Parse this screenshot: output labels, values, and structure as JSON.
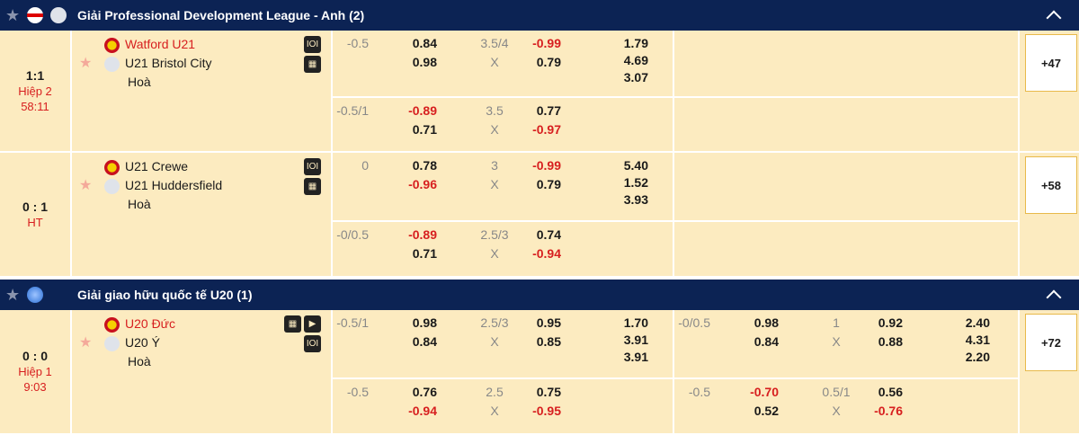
{
  "colors": {
    "header": "#0c2354",
    "row_bg": "#fcebc0",
    "negative": "#d71f1f",
    "accent": "#e8b94a"
  },
  "leagues": [
    {
      "name": "Giải Professional Development League - Anh (2)",
      "flag_icons": [
        "england-flag-icon",
        "fa-crest-icon"
      ],
      "collapse_icon": "chevron-up-icon",
      "matches": [
        {
          "score": "1:1",
          "status": "Hiệp 2",
          "clock": "58:11",
          "home": "Watford U21",
          "away": "U21 Bristol City",
          "draw": "Hoà",
          "home_highlight": true,
          "icons": [
            "lineup-icon",
            "stats-icon"
          ],
          "more": "+47",
          "ft": [
            {
              "hdp": "-0.5",
              "h": "0.84",
              "a": "0.98",
              "ou": "3.5/4",
              "x": "X",
              "o": "-0.99",
              "u": "0.79",
              "m1": "1.79",
              "mx": "4.69",
              "m2": "3.07"
            },
            {
              "hdp": "-0.5/1",
              "h": "-0.89",
              "a": "0.71",
              "ou": "3.5",
              "x": "X",
              "o": "0.77",
              "u": "-0.97"
            }
          ],
          "h1": []
        },
        {
          "score": "0 : 1",
          "status": "HT",
          "clock": "",
          "home": "U21 Crewe",
          "away": "U21 Huddersfield",
          "draw": "Hoà",
          "home_highlight": false,
          "icons": [
            "lineup-icon",
            "stats-icon"
          ],
          "more": "+58",
          "ft": [
            {
              "hdp": "0",
              "h": "0.78",
              "a": "-0.96",
              "ou": "3",
              "x": "X",
              "o": "-0.99",
              "u": "0.79",
              "m1": "5.40",
              "mx": "1.52",
              "m2": "3.93"
            },
            {
              "hdp": "-0/0.5",
              "h": "-0.89",
              "a": "0.71",
              "ou": "2.5/3",
              "x": "X",
              "o": "0.74",
              "u": "-0.94"
            }
          ],
          "h1": []
        }
      ]
    },
    {
      "name": "Giải giao hữu quốc tế U20 (1)",
      "flag_icons": [
        "international-globe-icon"
      ],
      "collapse_icon": "chevron-up-icon",
      "matches": [
        {
          "score": "0 : 0",
          "status": "Hiệp 1",
          "clock": "9:03",
          "home": "U20 Đức",
          "away": "U20 Ý",
          "draw": "Hoà",
          "home_highlight": true,
          "icons": [
            "stats-icon",
            "live-video-icon",
            "lineup-icon"
          ],
          "more": "+72",
          "ft": [
            {
              "hdp": "-0.5/1",
              "h": "0.98",
              "a": "0.84",
              "ou": "2.5/3",
              "x": "X",
              "o": "0.95",
              "u": "0.85",
              "m1": "1.70",
              "mx": "3.91",
              "m2": "3.91"
            },
            {
              "hdp": "-0.5",
              "h": "0.76",
              "a": "-0.94",
              "ou": "2.5",
              "x": "X",
              "o": "0.75",
              "u": "-0.95"
            }
          ],
          "h1": [
            {
              "hdp": "-0/0.5",
              "h": "0.98",
              "a": "0.84",
              "ou": "1",
              "x": "X",
              "o": "0.92",
              "u": "0.88",
              "m1": "2.40",
              "mx": "4.31",
              "m2": "2.20"
            },
            {
              "hdp": "-0.5",
              "h": "-0.70",
              "a": "0.52",
              "ou": "0.5/1",
              "x": "X",
              "o": "0.56",
              "u": "-0.76"
            }
          ]
        }
      ]
    }
  ]
}
